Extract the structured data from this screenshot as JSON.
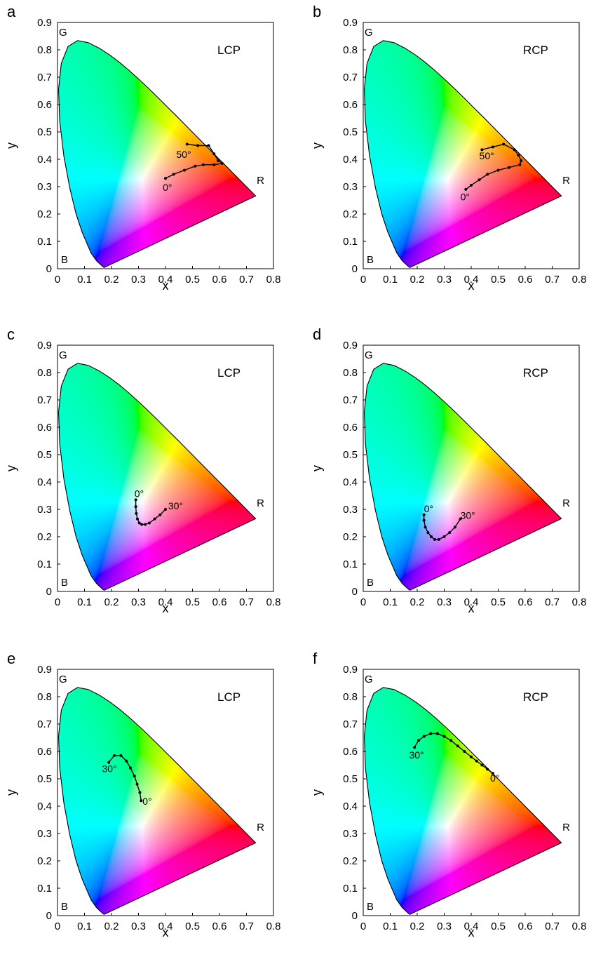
{
  "chart_data": [
    {
      "type": "scatter",
      "panel": "a",
      "polarization": "LCP",
      "xlabel": "x",
      "ylabel": "y",
      "xlim": [
        0,
        0.8
      ],
      "ylim": [
        0,
        0.9
      ],
      "xticks": [
        "0",
        "0.1",
        "0.2",
        "0.3",
        "0.4",
        "0.5",
        "0.6",
        "0.7",
        "0.8"
      ],
      "yticks": [
        "0",
        "0.1",
        "0.2",
        "0.3",
        "0.4",
        "0.5",
        "0.6",
        "0.7",
        "0.8",
        "0.9"
      ],
      "corner_labels": {
        "G": "G",
        "R": "R",
        "B": "B"
      },
      "annotations": [
        {
          "text": "0°",
          "x": 0.39,
          "y": 0.285
        },
        {
          "text": "50°",
          "x": 0.44,
          "y": 0.405
        }
      ],
      "x": [
        0.4,
        0.43,
        0.47,
        0.51,
        0.54,
        0.58,
        0.61,
        0.595,
        0.58,
        0.56,
        0.52,
        0.48
      ],
      "y": [
        0.33,
        0.345,
        0.36,
        0.375,
        0.38,
        0.38,
        0.385,
        0.395,
        0.42,
        0.45,
        0.45,
        0.455
      ]
    },
    {
      "type": "scatter",
      "panel": "b",
      "polarization": "RCP",
      "xlabel": "x",
      "ylabel": "y",
      "xlim": [
        0,
        0.8
      ],
      "ylim": [
        0,
        0.9
      ],
      "xticks": [
        "0",
        "0.1",
        "0.2",
        "0.3",
        "0.4",
        "0.5",
        "0.6",
        "0.7",
        "0.8"
      ],
      "yticks": [
        "0",
        "0.1",
        "0.2",
        "0.3",
        "0.4",
        "0.5",
        "0.6",
        "0.7",
        "0.8",
        "0.9"
      ],
      "corner_labels": {
        "G": "G",
        "R": "R",
        "B": "B"
      },
      "annotations": [
        {
          "text": "0°",
          "x": 0.36,
          "y": 0.25
        },
        {
          "text": "50°",
          "x": 0.43,
          "y": 0.4
        }
      ],
      "x": [
        0.38,
        0.4,
        0.43,
        0.46,
        0.5,
        0.54,
        0.58,
        0.585,
        0.575,
        0.56,
        0.52,
        0.48,
        0.44
      ],
      "y": [
        0.29,
        0.305,
        0.325,
        0.345,
        0.36,
        0.37,
        0.38,
        0.395,
        0.415,
        0.435,
        0.455,
        0.445,
        0.435
      ]
    },
    {
      "type": "scatter",
      "panel": "c",
      "polarization": "LCP",
      "xlabel": "x",
      "ylabel": "y",
      "xlim": [
        0,
        0.8
      ],
      "ylim": [
        0,
        0.9
      ],
      "xticks": [
        "0",
        "0.1",
        "0.2",
        "0.3",
        "0.4",
        "0.5",
        "0.6",
        "0.7",
        "0.8"
      ],
      "yticks": [
        "0",
        "0.1",
        "0.2",
        "0.3",
        "0.4",
        "0.5",
        "0.6",
        "0.7",
        "0.8",
        "0.9"
      ],
      "corner_labels": {
        "G": "G",
        "R": "R",
        "B": "B"
      },
      "annotations": [
        {
          "text": "0°",
          "x": 0.285,
          "y": 0.345
        },
        {
          "text": "30°",
          "x": 0.41,
          "y": 0.3
        }
      ],
      "x": [
        0.29,
        0.29,
        0.292,
        0.296,
        0.303,
        0.312,
        0.325,
        0.34,
        0.36,
        0.38,
        0.4
      ],
      "y": [
        0.335,
        0.31,
        0.285,
        0.265,
        0.25,
        0.245,
        0.245,
        0.25,
        0.265,
        0.28,
        0.3
      ]
    },
    {
      "type": "scatter",
      "panel": "d",
      "polarization": "RCP",
      "xlabel": "x",
      "ylabel": "y",
      "xlim": [
        0,
        0.8
      ],
      "ylim": [
        0,
        0.9
      ],
      "xticks": [
        "0",
        "0.1",
        "0.2",
        "0.3",
        "0.4",
        "0.5",
        "0.6",
        "0.7",
        "0.8"
      ],
      "yticks": [
        "0",
        "0.1",
        "0.2",
        "0.3",
        "0.4",
        "0.5",
        "0.6",
        "0.7",
        "0.8",
        "0.9"
      ],
      "corner_labels": {
        "G": "G",
        "R": "R",
        "B": "B"
      },
      "annotations": [
        {
          "text": "0°",
          "x": 0.225,
          "y": 0.29
        },
        {
          "text": "30°",
          "x": 0.36,
          "y": 0.265
        }
      ],
      "x": [
        0.225,
        0.225,
        0.23,
        0.24,
        0.252,
        0.265,
        0.28,
        0.3,
        0.32,
        0.34,
        0.36
      ],
      "y": [
        0.28,
        0.26,
        0.235,
        0.215,
        0.2,
        0.19,
        0.19,
        0.2,
        0.215,
        0.235,
        0.265
      ]
    },
    {
      "type": "scatter",
      "panel": "e",
      "polarization": "LCP",
      "xlabel": "x",
      "ylabel": "y",
      "xlim": [
        0,
        0.8
      ],
      "ylim": [
        0,
        0.9
      ],
      "xticks": [
        "0",
        "0.1",
        "0.2",
        "0.3",
        "0.4",
        "0.5",
        "0.6",
        "0.7",
        "0.8"
      ],
      "yticks": [
        "0",
        "0.1",
        "0.2",
        "0.3",
        "0.4",
        "0.5",
        "0.6",
        "0.7",
        "0.8",
        "0.9"
      ],
      "corner_labels": {
        "G": "G",
        "R": "R",
        "B": "B"
      },
      "annotations": [
        {
          "text": "30°",
          "x": 0.165,
          "y": 0.525
        },
        {
          "text": "0°",
          "x": 0.315,
          "y": 0.405
        }
      ],
      "x": [
        0.31,
        0.305,
        0.295,
        0.285,
        0.27,
        0.255,
        0.235,
        0.21,
        0.19
      ],
      "y": [
        0.42,
        0.45,
        0.48,
        0.51,
        0.54,
        0.565,
        0.585,
        0.585,
        0.56
      ]
    },
    {
      "type": "scatter",
      "panel": "f",
      "polarization": "RCP",
      "xlabel": "x",
      "ylabel": "y",
      "xlim": [
        0,
        0.8
      ],
      "ylim": [
        0,
        0.9
      ],
      "xticks": [
        "0",
        "0.1",
        "0.2",
        "0.3",
        "0.4",
        "0.5",
        "0.6",
        "0.7",
        "0.8"
      ],
      "yticks": [
        "0",
        "0.1",
        "0.2",
        "0.3",
        "0.4",
        "0.5",
        "0.6",
        "0.7",
        "0.8",
        "0.9"
      ],
      "corner_labels": {
        "G": "G",
        "R": "R",
        "B": "B"
      },
      "annotations": [
        {
          "text": "30°",
          "x": 0.17,
          "y": 0.575
        },
        {
          "text": "0°",
          "x": 0.47,
          "y": 0.49
        }
      ],
      "x": [
        0.48,
        0.46,
        0.44,
        0.42,
        0.4,
        0.375,
        0.35,
        0.325,
        0.3,
        0.275,
        0.25,
        0.225,
        0.205,
        0.19
      ],
      "y": [
        0.52,
        0.535,
        0.55,
        0.565,
        0.58,
        0.6,
        0.62,
        0.64,
        0.655,
        0.665,
        0.665,
        0.655,
        0.64,
        0.615
      ]
    }
  ]
}
